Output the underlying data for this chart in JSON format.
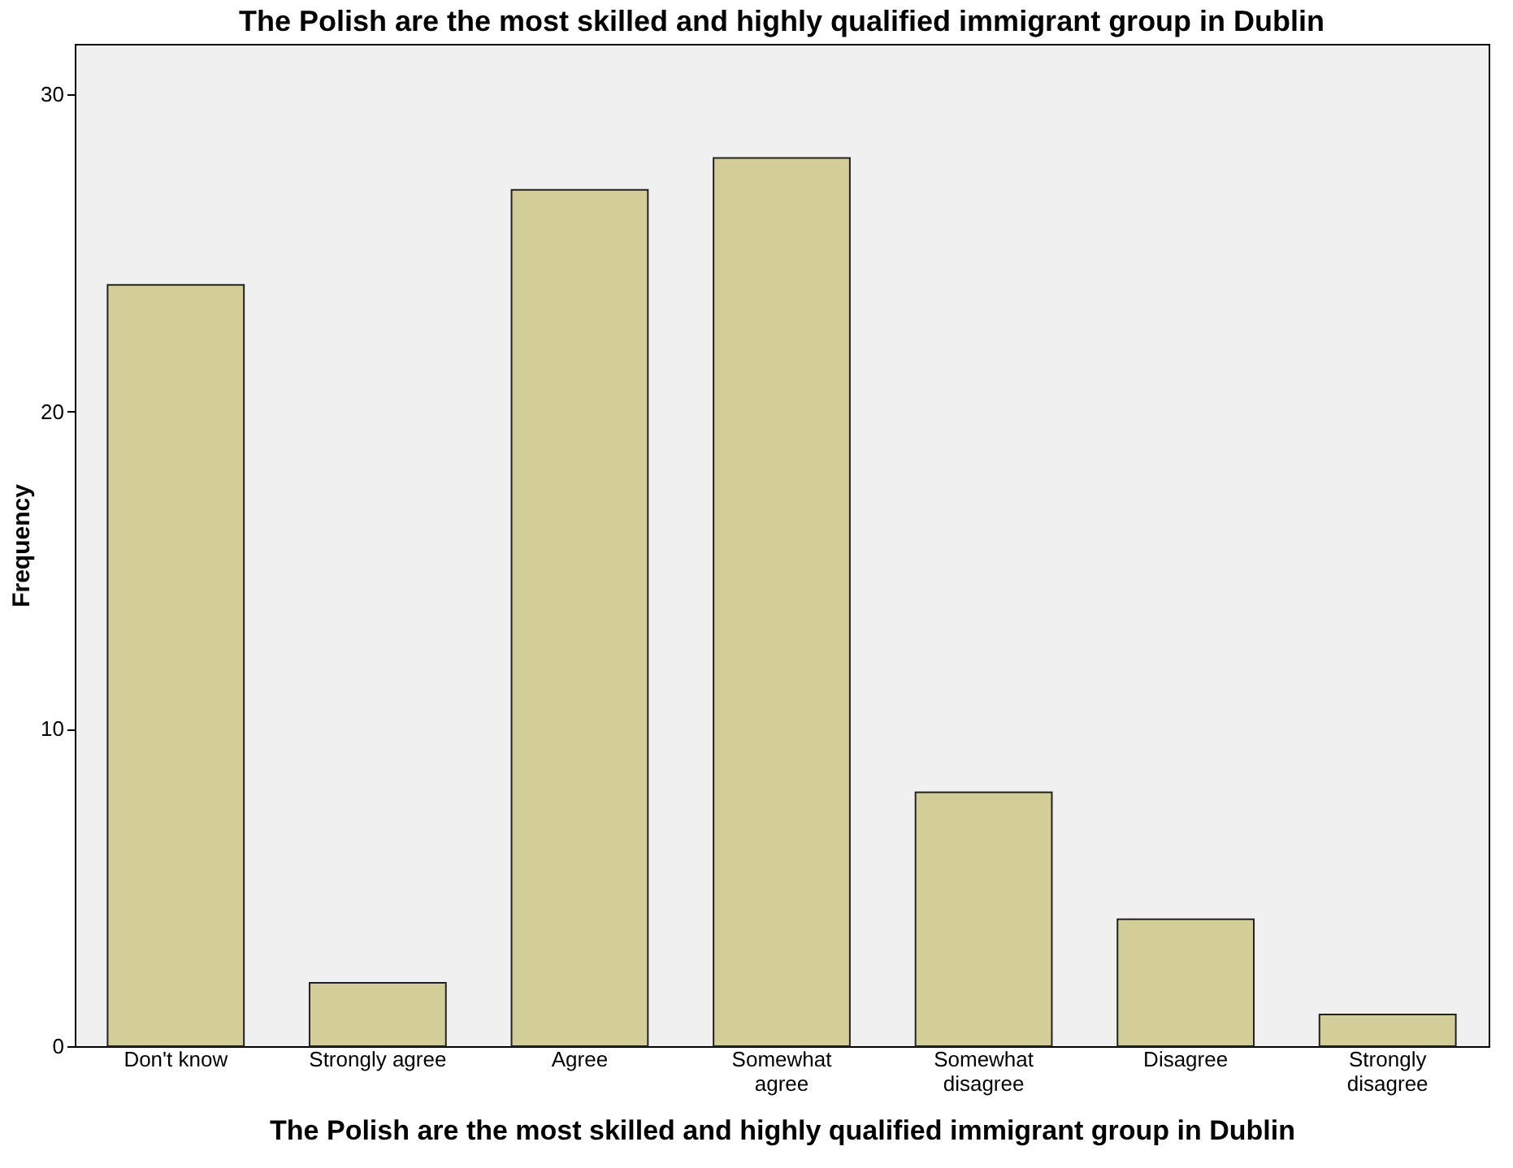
{
  "chart_data": {
    "type": "bar",
    "title": "The Polish are the most skilled and highly qualified immigrant group in Dublin",
    "xlabel": "The Polish are the most skilled and highly qualified immigrant group in Dublin",
    "ylabel": "Frequency",
    "categories": [
      "Don't know",
      "Strongly agree",
      "Agree",
      "Somewhat\nagree",
      "Somewhat\ndisagree",
      "Disagree",
      "Strongly\ndisagree"
    ],
    "values": [
      24,
      2,
      27,
      28,
      8,
      4,
      1
    ],
    "color": "#d3ce97",
    "ylim": [
      0,
      31.6
    ],
    "yticks": [
      0,
      10,
      20,
      30
    ],
    "grid": false
  }
}
